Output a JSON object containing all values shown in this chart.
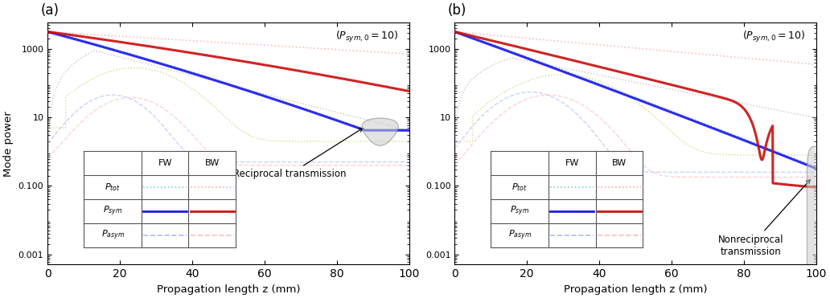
{
  "xlim": [
    0,
    100
  ],
  "xlabel": "Propagation length z (mm)",
  "ylabel": "Mode power",
  "annotation_a": "Reciprocal transmission",
  "annotation_b": "Nonreciprocal\ntransmission",
  "label_a": "(a)",
  "label_b": "(b)",
  "background": "#ffffff",
  "blue_solid": "#1a1aee",
  "red_solid": "#cc1111",
  "cyan_dot": "#88cccc",
  "pink_dot": "#ffaaaa",
  "blue_dash": "#aabbff",
  "pink_dash": "#ffbbbb",
  "gray_dot": "#bbbbbb",
  "yellow_dot": "#cccc66"
}
